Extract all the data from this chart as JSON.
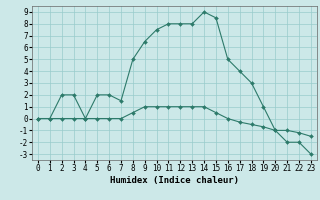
{
  "xlabel": "Humidex (Indice chaleur)",
  "bg_color": "#cce8e8",
  "grid_color": "#99cccc",
  "line_color": "#2d7a6a",
  "marker_color": "#2d7a6a",
  "xlim": [
    -0.5,
    23.5
  ],
  "ylim": [
    -3.5,
    9.5
  ],
  "yticks": [
    -3,
    -2,
    -1,
    0,
    1,
    2,
    3,
    4,
    5,
    6,
    7,
    8,
    9
  ],
  "xticks": [
    0,
    1,
    2,
    3,
    4,
    5,
    6,
    7,
    8,
    9,
    10,
    11,
    12,
    13,
    14,
    15,
    16,
    17,
    18,
    19,
    20,
    21,
    22,
    23
  ],
  "curve1_x": [
    0,
    1,
    2,
    3,
    4,
    5,
    6,
    7,
    8,
    9,
    10,
    11,
    12,
    13,
    14,
    15,
    16,
    17,
    18,
    19,
    20,
    21,
    22,
    23
  ],
  "curve1_y": [
    0,
    0,
    2,
    2,
    0,
    2,
    2,
    1.5,
    5,
    6.5,
    7.5,
    8,
    8,
    8,
    9,
    8.5,
    5,
    4,
    3,
    1,
    -1,
    -2,
    -2,
    -3
  ],
  "curve2_x": [
    0,
    1,
    2,
    3,
    4,
    5,
    6,
    7,
    8,
    9,
    10,
    11,
    12,
    13,
    14,
    15,
    16,
    17,
    18,
    19,
    20,
    21,
    22,
    23
  ],
  "curve2_y": [
    0,
    0,
    0,
    0,
    0,
    0,
    0,
    0,
    0.5,
    1,
    1,
    1,
    1,
    1,
    1,
    0.5,
    0,
    -0.3,
    -0.5,
    -0.7,
    -1,
    -1,
    -1.2,
    -1.5
  ],
  "tick_fontsize": 5.5,
  "xlabel_fontsize": 6.5,
  "linewidth": 0.8,
  "markersize": 2.0
}
